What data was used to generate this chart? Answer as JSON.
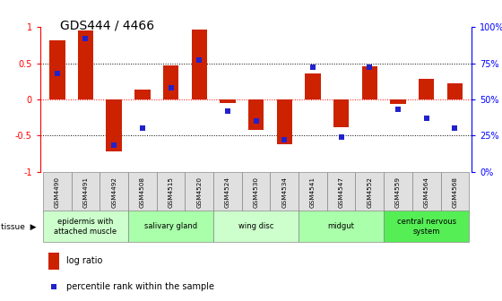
{
  "title": "GDS444 / 4466",
  "samples": [
    "GSM4490",
    "GSM4491",
    "GSM4492",
    "GSM4508",
    "GSM4515",
    "GSM4520",
    "GSM4524",
    "GSM4530",
    "GSM4534",
    "GSM4541",
    "GSM4547",
    "GSM4552",
    "GSM4559",
    "GSM4564",
    "GSM4568"
  ],
  "log_ratio": [
    0.82,
    0.95,
    -0.72,
    0.13,
    0.47,
    0.97,
    -0.05,
    -0.42,
    -0.62,
    0.36,
    -0.38,
    0.46,
    -0.06,
    0.28,
    0.22
  ],
  "percentile": [
    68,
    92,
    18,
    30,
    58,
    77,
    42,
    35,
    22,
    72,
    24,
    72,
    43,
    37,
    30
  ],
  "tissue_groups": [
    {
      "label": "epidermis with\nattached muscle",
      "start": 0,
      "end": 3,
      "color": "#ccffcc"
    },
    {
      "label": "salivary gland",
      "start": 3,
      "end": 6,
      "color": "#aaffaa"
    },
    {
      "label": "wing disc",
      "start": 6,
      "end": 9,
      "color": "#ccffcc"
    },
    {
      "label": "midgut",
      "start": 9,
      "end": 12,
      "color": "#aaffaa"
    },
    {
      "label": "central nervous\nsystem",
      "start": 12,
      "end": 15,
      "color": "#55ee55"
    }
  ],
  "bar_color": "#cc2200",
  "percentile_color": "#2222cc",
  "bar_width": 0.55
}
